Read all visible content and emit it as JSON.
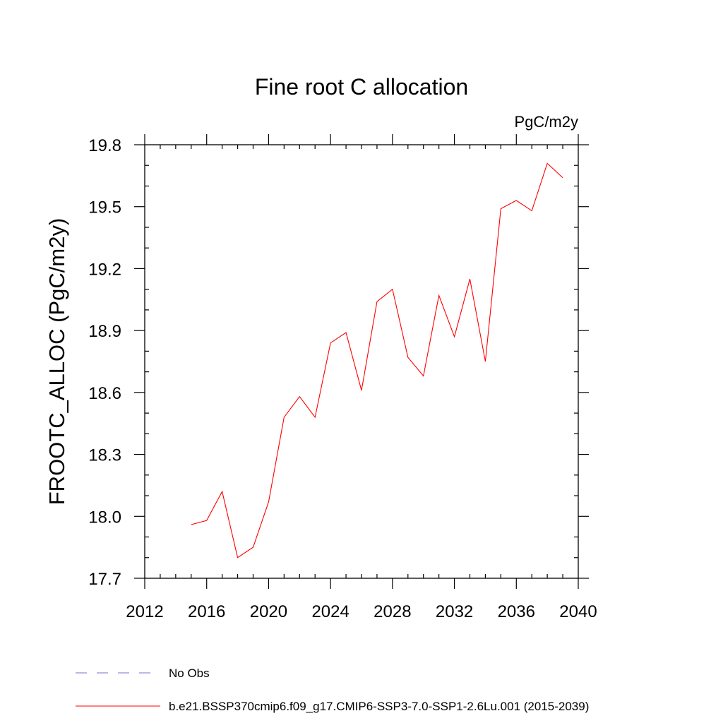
{
  "chart_data": {
    "type": "line",
    "title": "Fine root C allocation",
    "units": "PgC/m2y",
    "ylabel": "FROOTC_ALLOC  (PgC/m2y)",
    "xlabel": "",
    "xlim": [
      2012,
      2040
    ],
    "ylim": [
      17.7,
      19.8
    ],
    "x_ticks": [
      2012,
      2016,
      2020,
      2024,
      2028,
      2032,
      2036,
      2040
    ],
    "y_ticks": [
      17.7,
      18.0,
      18.3,
      18.6,
      18.9,
      19.2,
      19.5,
      19.8
    ],
    "x_tick_labels": [
      "2012",
      "2016",
      "2020",
      "2024",
      "2028",
      "2032",
      "2036",
      "2040"
    ],
    "y_tick_labels": [
      "17.7",
      "18.0",
      "18.3",
      "18.6",
      "18.9",
      "19.2",
      "19.5",
      "19.8"
    ],
    "x_minor_step": 1,
    "y_minor_step": 0.1,
    "grid": false,
    "legend_position": "bottom",
    "series": [
      {
        "name": "No Obs",
        "color": "#7b6fd0",
        "style": "dashed",
        "x": [],
        "y": []
      },
      {
        "name": "b.e21.BSSP370cmip6.f09_g17.CMIP6-SSP3-7.0-SSP1-2.6Lu.001 (2015-2039)",
        "color": "#ff0000",
        "style": "solid",
        "x": [
          2015,
          2016,
          2017,
          2018,
          2019,
          2020,
          2021,
          2022,
          2023,
          2024,
          2025,
          2026,
          2027,
          2028,
          2029,
          2030,
          2031,
          2032,
          2033,
          2034,
          2035,
          2036,
          2037,
          2038,
          2039
        ],
        "y": [
          17.96,
          17.98,
          18.12,
          17.8,
          17.85,
          18.07,
          18.48,
          18.58,
          18.48,
          18.84,
          18.89,
          18.61,
          19.04,
          19.1,
          18.77,
          18.68,
          19.07,
          18.87,
          19.15,
          18.75,
          19.49,
          19.53,
          19.48,
          19.71,
          19.64
        ]
      }
    ]
  }
}
